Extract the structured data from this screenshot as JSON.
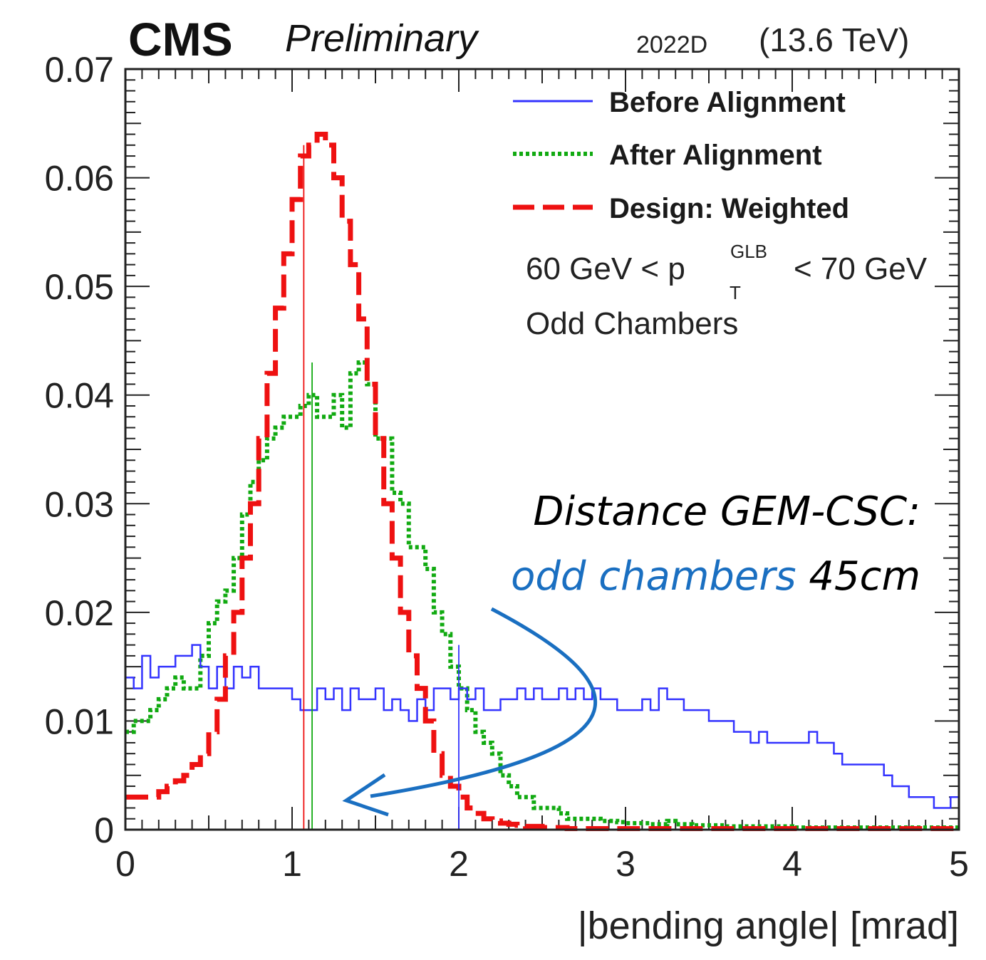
{
  "header": {
    "experiment": "CMS",
    "status": "Preliminary",
    "run": "2022D",
    "energy": "(13.6 TeV)"
  },
  "legend": {
    "entries": [
      {
        "label": "Before Alignment",
        "color": "#3333ff",
        "style": "solid"
      },
      {
        "label": "After Alignment",
        "color": "#11aa11",
        "style": "dotted"
      },
      {
        "label": "Design: Weighted",
        "color": "#ee1111",
        "style": "dashed"
      }
    ],
    "cut_prefix": "60 GeV < p",
    "cut_sub": "T",
    "cut_sup": "GLB",
    "cut_suffix": "< 70 GeV",
    "selection": "Odd Chambers"
  },
  "annotation": {
    "line1": "Distance GEM-CSC:",
    "line2_highlight": "odd chambers",
    "line2_rest": "45cm",
    "highlight_color": "#1a6fc1"
  },
  "chart_data": {
    "type": "histogram",
    "xlabel": "|bending angle| [mrad]",
    "ylabel": "",
    "xlim": [
      0,
      5
    ],
    "ylim": [
      0,
      0.07
    ],
    "bin_width": 0.05,
    "x_ticks": [
      "0",
      "1",
      "2",
      "3",
      "4",
      "5"
    ],
    "y_ticks": [
      "0",
      "0.01",
      "0.02",
      "0.03",
      "0.04",
      "0.05",
      "0.06",
      "0.07"
    ],
    "series": [
      {
        "name": "Before Alignment",
        "color": "#3333ff",
        "mean_line": 2.0,
        "mean_line_height": 0.017,
        "values": [
          0.014,
          0.013,
          0.016,
          0.014,
          0.015,
          0.015,
          0.016,
          0.016,
          0.017,
          0.015,
          0.013,
          0.015,
          0.013,
          0.015,
          0.014,
          0.015,
          0.013,
          0.013,
          0.013,
          0.013,
          0.012,
          0.011,
          0.011,
          0.013,
          0.012,
          0.013,
          0.011,
          0.013,
          0.012,
          0.012,
          0.013,
          0.011,
          0.012,
          0.011,
          0.01,
          0.012,
          0.011,
          0.013,
          0.013,
          0.012,
          0.013,
          0.012,
          0.013,
          0.011,
          0.011,
          0.012,
          0.012,
          0.013,
          0.012,
          0.013,
          0.012,
          0.012,
          0.013,
          0.012,
          0.013,
          0.012,
          0.013,
          0.012,
          0.012,
          0.011,
          0.011,
          0.011,
          0.012,
          0.011,
          0.013,
          0.012,
          0.012,
          0.011,
          0.011,
          0.011,
          0.01,
          0.01,
          0.01,
          0.009,
          0.009,
          0.008,
          0.009,
          0.008,
          0.008,
          0.008,
          0.008,
          0.008,
          0.009,
          0.008,
          0.008,
          0.007,
          0.006,
          0.006,
          0.006,
          0.006,
          0.006,
          0.005,
          0.004,
          0.004,
          0.003,
          0.003,
          0.003,
          0.002,
          0.002,
          0.003
        ]
      },
      {
        "name": "After Alignment",
        "color": "#11aa11",
        "mean_line": 1.12,
        "mean_line_height": 0.043,
        "values": [
          0.009,
          0.01,
          0.01,
          0.011,
          0.012,
          0.013,
          0.014,
          0.013,
          0.013,
          0.016,
          0.019,
          0.021,
          0.022,
          0.025,
          0.029,
          0.032,
          0.034,
          0.036,
          0.037,
          0.038,
          0.038,
          0.039,
          0.04,
          0.038,
          0.038,
          0.04,
          0.037,
          0.042,
          0.043,
          0.041,
          0.036,
          0.036,
          0.031,
          0.03,
          0.026,
          0.026,
          0.024,
          0.02,
          0.018,
          0.015,
          0.013,
          0.011,
          0.009,
          0.008,
          0.007,
          0.005,
          0.004,
          0.003,
          0.003,
          0.002,
          0.002,
          0.002,
          0.0015,
          0.001,
          0.001,
          0.001,
          0.001,
          0.0008,
          0.0008,
          0.0007,
          0.0006,
          0.0006,
          0.0006,
          0.0005,
          0.0005,
          0.0008,
          0.0005,
          0.0005,
          0.0004,
          0.0004,
          0.0004,
          0.0004,
          0.0003,
          0.0003,
          0.0003,
          0.0003,
          0.0003,
          0.0003,
          0.0003,
          0.0003,
          0.0002,
          0.0002,
          0.0002,
          0.0002,
          0.0002,
          0.0002,
          0.0002,
          0.0002,
          0.0002,
          0.0002,
          0.0002,
          0.0002,
          0.0002,
          0.0002,
          0.0002,
          0.0002,
          0.0002,
          0.0002,
          0.0002,
          0.0002
        ]
      },
      {
        "name": "Design: Weighted",
        "color": "#ee1111",
        "mean_line": 1.07,
        "mean_line_height": 0.063,
        "values": [
          0.003,
          0.003,
          0.003,
          0.003,
          0.0035,
          0.004,
          0.0045,
          0.005,
          0.006,
          0.007,
          0.009,
          0.012,
          0.016,
          0.02,
          0.025,
          0.03,
          0.036,
          0.042,
          0.048,
          0.053,
          0.058,
          0.062,
          0.063,
          0.064,
          0.063,
          0.06,
          0.056,
          0.052,
          0.047,
          0.041,
          0.036,
          0.03,
          0.025,
          0.02,
          0.016,
          0.013,
          0.01,
          0.007,
          0.005,
          0.004,
          0.003,
          0.002,
          0.0015,
          0.001,
          0.0008,
          0.0006,
          0.0005,
          0.0004,
          0.0003,
          0.0003,
          0.0002,
          0.0002,
          0.0002,
          0.0001,
          0.0001,
          0.0001,
          0.0001,
          0.0001,
          0.0001,
          0.0001,
          0.0001,
          0.0001,
          0.0001,
          0.0001,
          0.0001,
          0.0001,
          0.0001,
          0.0001,
          0.0001,
          0.0001,
          0.0001,
          0.0001,
          0.0001,
          0.0001,
          0.0001,
          0.0001,
          0.0001,
          0.0001,
          0.0001,
          0.0001,
          0.0001,
          0.0001,
          0.0001,
          0.0001,
          0.0001,
          0.0001,
          0.0001,
          0.0001,
          0.0001,
          0.0001,
          0.0001,
          0.0001,
          0.0001,
          0.0001,
          0.0001,
          0.0001,
          0.0001,
          0.0001,
          0.0001,
          0.0001
        ]
      }
    ]
  }
}
